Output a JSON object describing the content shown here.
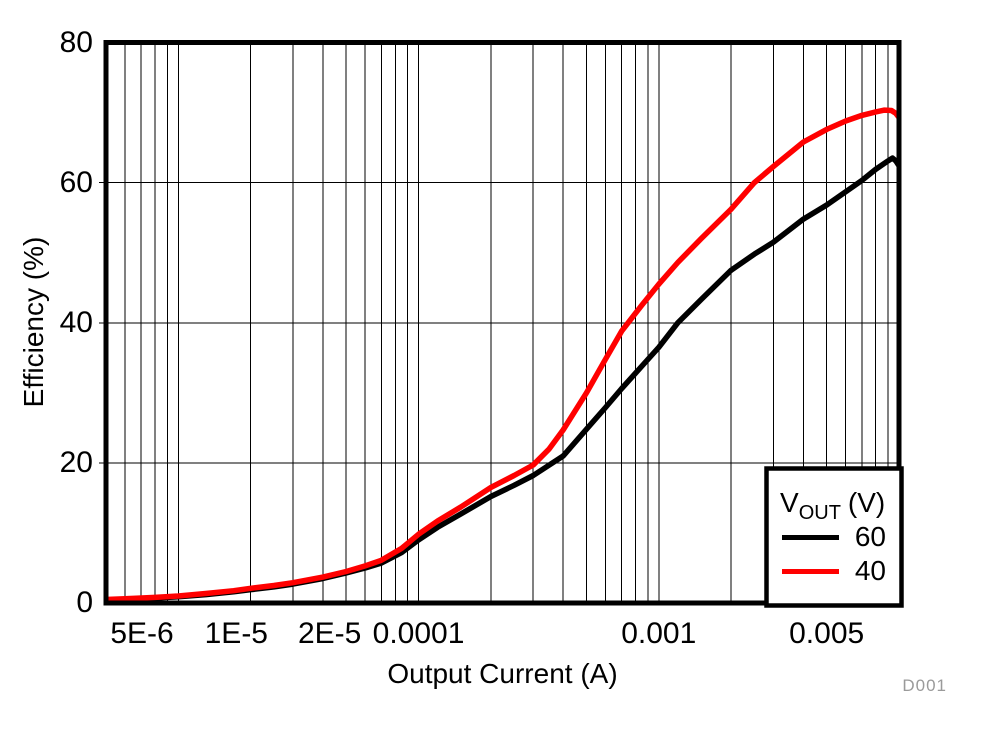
{
  "figure_label": "D001",
  "legend": {
    "title": {
      "v": "V",
      "sub": "OUT",
      "unit": "(V)"
    },
    "entries": [
      {
        "label": "60",
        "color": "#000000"
      },
      {
        "label": "40",
        "color": "#ff0000"
      }
    ]
  },
  "chart_data": {
    "type": "line",
    "title": "",
    "xlabel": "Output Current (A)",
    "ylabel": "Efficiency (%)",
    "x_scale": "log",
    "xlim": [
      5e-06,
      0.01
    ],
    "ylim": [
      0,
      80
    ],
    "grid": true,
    "legend_position": "bottom-right",
    "x_ticks": [
      {
        "value": 5e-06,
        "label": "5E-6",
        "dx": 36
      },
      {
        "value": 1e-05,
        "label": "1E-5",
        "dx": 58
      },
      {
        "value": 2e-05,
        "label": "2E-5",
        "dx": 79
      },
      {
        "value": 0.0001,
        "label": "0.0001",
        "dx": 0
      },
      {
        "value": 0.001,
        "label": "0.001",
        "dx": 0
      },
      {
        "value": 0.005,
        "label": "0.005",
        "dx": 0
      }
    ],
    "y_ticks": [
      {
        "value": 0,
        "label": "0"
      },
      {
        "value": 20,
        "label": "20"
      },
      {
        "value": 40,
        "label": "40"
      },
      {
        "value": 60,
        "label": "60"
      },
      {
        "value": 80,
        "label": "80"
      }
    ],
    "y_gridlines": [
      20,
      40,
      60
    ],
    "x_minor_gridlines": [
      6e-06,
      7e-06,
      8e-06,
      9e-06,
      1e-05,
      2e-05,
      3e-05,
      4e-05,
      5e-05,
      6e-05,
      7e-05,
      8e-05,
      9e-05,
      0.0001,
      0.0002,
      0.0003,
      0.0004,
      0.0005,
      0.0006,
      0.0007,
      0.0008,
      0.0009,
      0.001,
      0.002,
      0.003,
      0.004,
      0.005,
      0.006,
      0.007,
      0.008,
      0.009
    ],
    "series": [
      {
        "name": "60",
        "color": "#000000",
        "points": [
          [
            5e-06,
            0.4
          ],
          [
            6.5e-06,
            0.55
          ],
          [
            8e-06,
            0.7
          ],
          [
            1e-05,
            0.9
          ],
          [
            1.3e-05,
            1.2
          ],
          [
            1.7e-05,
            1.6
          ],
          [
            2e-05,
            1.9
          ],
          [
            2.5e-05,
            2.3
          ],
          [
            3e-05,
            2.7
          ],
          [
            4e-05,
            3.5
          ],
          [
            5e-05,
            4.3
          ],
          [
            6e-05,
            5.0
          ],
          [
            7e-05,
            5.7
          ],
          [
            8.5e-05,
            7.2
          ],
          [
            0.0001,
            9.0
          ],
          [
            0.00012,
            10.8
          ],
          [
            0.00015,
            12.7
          ],
          [
            0.0002,
            15.2
          ],
          [
            0.00025,
            16.8
          ],
          [
            0.0003,
            18.2
          ],
          [
            0.0004,
            21.0
          ],
          [
            0.0005,
            24.8
          ],
          [
            0.0006,
            27.9
          ],
          [
            0.0007,
            30.6
          ],
          [
            0.00085,
            33.8
          ],
          [
            0.001,
            36.5
          ],
          [
            0.0012,
            40.0
          ],
          [
            0.0015,
            43.3
          ],
          [
            0.002,
            47.5
          ],
          [
            0.0025,
            49.8
          ],
          [
            0.003,
            51.5
          ],
          [
            0.004,
            54.8
          ],
          [
            0.005,
            56.8
          ],
          [
            0.006,
            58.7
          ],
          [
            0.007,
            60.3
          ],
          [
            0.008,
            61.9
          ],
          [
            0.009,
            63.1
          ],
          [
            0.0094,
            63.5
          ],
          [
            0.0097,
            63.1
          ],
          [
            0.01,
            62.4
          ]
        ]
      },
      {
        "name": "40",
        "color": "#ff0000",
        "points": [
          [
            5e-06,
            0.5
          ],
          [
            6.5e-06,
            0.65
          ],
          [
            8e-06,
            0.8
          ],
          [
            1e-05,
            1.0
          ],
          [
            1.3e-05,
            1.35
          ],
          [
            1.7e-05,
            1.75
          ],
          [
            2e-05,
            2.1
          ],
          [
            2.5e-05,
            2.5
          ],
          [
            3e-05,
            2.9
          ],
          [
            4e-05,
            3.7
          ],
          [
            5e-05,
            4.5
          ],
          [
            6e-05,
            5.3
          ],
          [
            7e-05,
            6.1
          ],
          [
            8.5e-05,
            7.8
          ],
          [
            0.0001,
            9.8
          ],
          [
            0.00012,
            11.7
          ],
          [
            0.00015,
            13.7
          ],
          [
            0.0002,
            16.5
          ],
          [
            0.00025,
            18.2
          ],
          [
            0.0003,
            19.7
          ],
          [
            0.00035,
            22.0
          ],
          [
            0.0004,
            24.7
          ],
          [
            0.0005,
            30.0
          ],
          [
            0.0006,
            34.8
          ],
          [
            0.0007,
            38.8
          ],
          [
            0.00085,
            42.5
          ],
          [
            0.001,
            45.5
          ],
          [
            0.0012,
            48.6
          ],
          [
            0.0015,
            52.0
          ],
          [
            0.002,
            56.2
          ],
          [
            0.0025,
            60.0
          ],
          [
            0.003,
            62.3
          ],
          [
            0.004,
            65.8
          ],
          [
            0.005,
            67.6
          ],
          [
            0.006,
            68.8
          ],
          [
            0.007,
            69.6
          ],
          [
            0.008,
            70.1
          ],
          [
            0.0087,
            70.35
          ],
          [
            0.0093,
            70.3
          ],
          [
            0.0097,
            69.9
          ],
          [
            0.01,
            69.3
          ]
        ]
      }
    ]
  }
}
